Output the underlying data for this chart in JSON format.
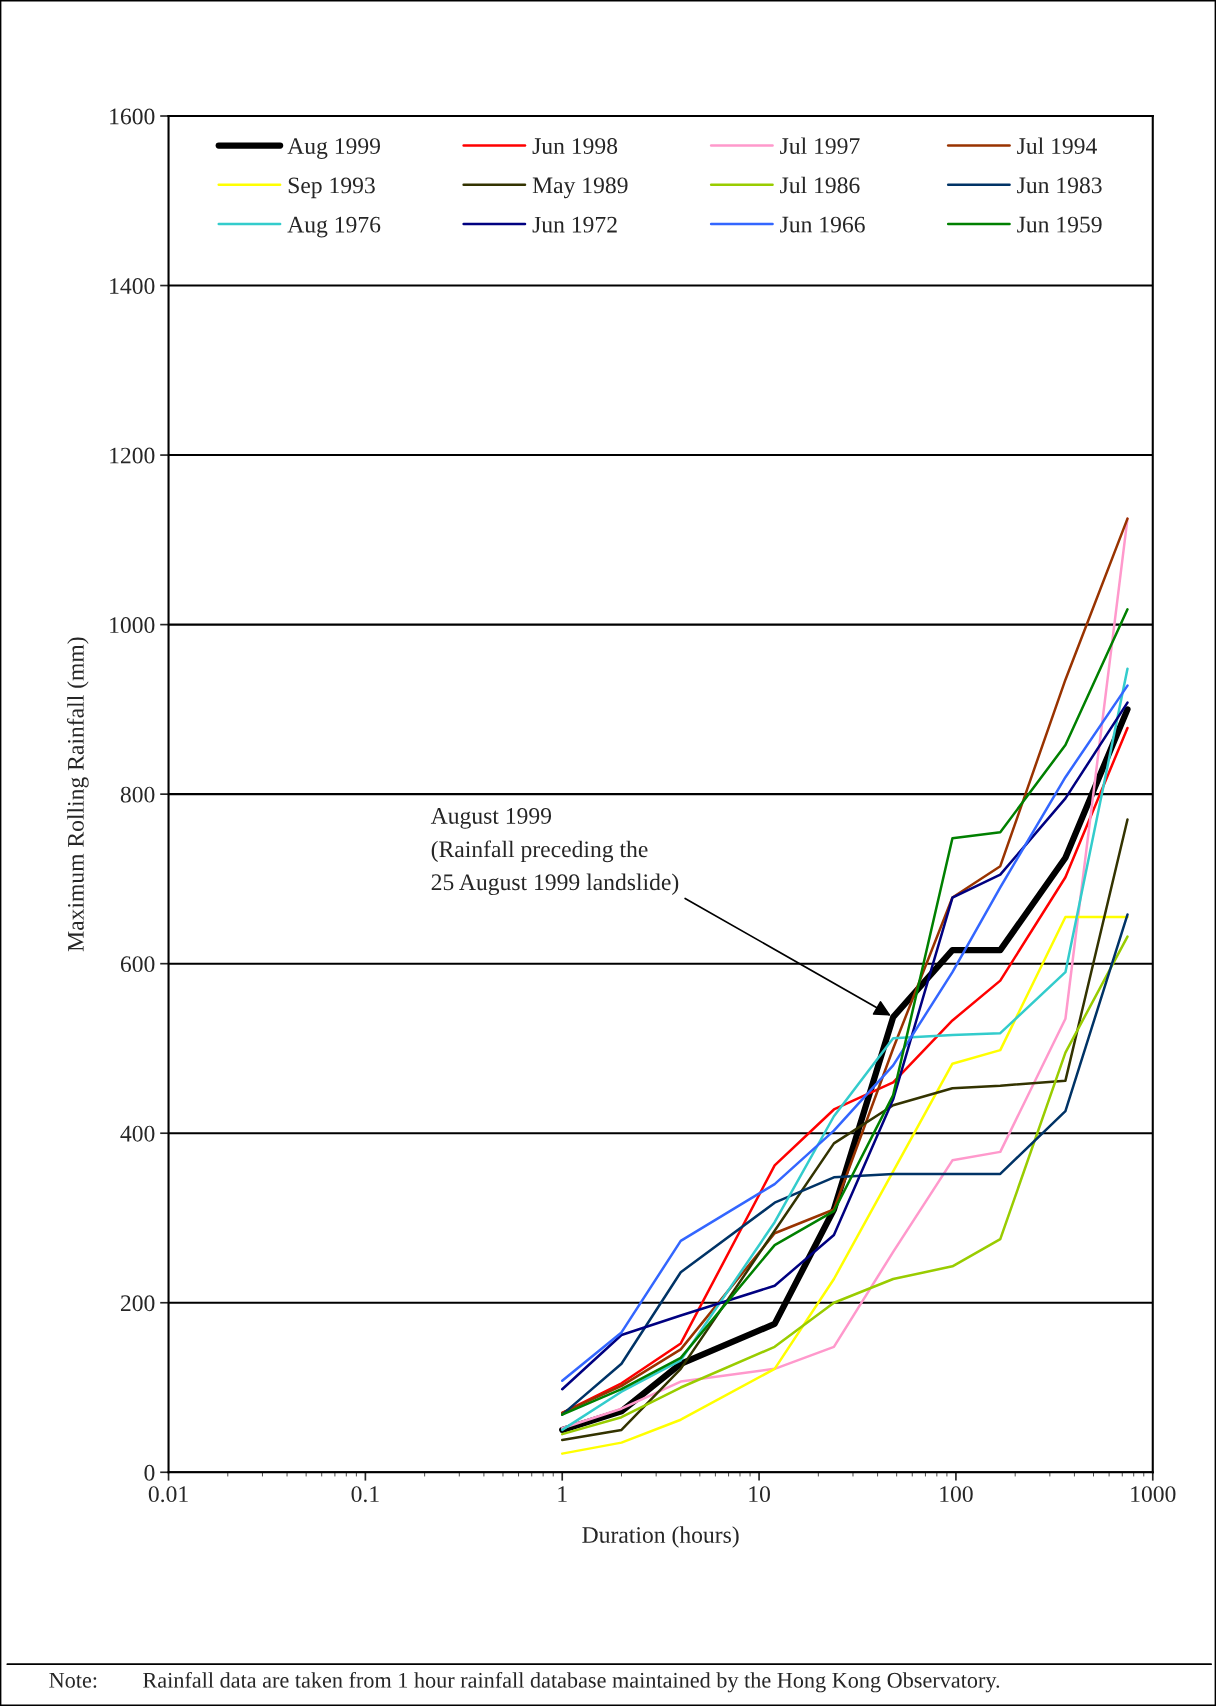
{
  "chart_data": {
    "type": "line",
    "xlabel": "Duration (hours)",
    "ylabel": "Maximum Rolling Rainfall (mm)",
    "x": [
      1,
      2,
      4,
      12,
      24,
      48,
      96,
      168,
      360,
      744
    ],
    "series": [
      {
        "name": "Aug 1999",
        "color": "#000000",
        "values": [
          50,
          72,
          128,
          175,
          310,
          537,
          616,
          616,
          725,
          900
        ]
      },
      {
        "name": "Jun 1998",
        "color": "#ff0000",
        "values": [
          70,
          105,
          152,
          362,
          428,
          460,
          533,
          580,
          702,
          878
        ]
      },
      {
        "name": "Jul 1997",
        "color": "#ff99cc",
        "values": [
          52,
          75,
          107,
          122,
          148,
          260,
          368,
          378,
          535,
          1125
        ]
      },
      {
        "name": "Jul 1994",
        "color": "#993300",
        "values": [
          70,
          102,
          145,
          282,
          310,
          500,
          678,
          715,
          935,
          1125
        ]
      },
      {
        "name": "Sep 1993",
        "color": "#ffff00",
        "values": [
          22,
          35,
          62,
          122,
          228,
          355,
          482,
          498,
          655,
          655
        ]
      },
      {
        "name": "May 1989",
        "color": "#333300",
        "values": [
          38,
          50,
          122,
          285,
          388,
          433,
          453,
          456,
          462,
          770
        ]
      },
      {
        "name": "Jul 1986",
        "color": "#99cc00",
        "values": [
          45,
          65,
          100,
          148,
          200,
          228,
          243,
          275,
          495,
          632
        ]
      },
      {
        "name": "Jun 1983",
        "color": "#003366",
        "values": [
          68,
          128,
          236,
          318,
          348,
          352,
          352,
          352,
          426,
          658
        ]
      },
      {
        "name": "Aug 1976",
        "color": "#33cccc",
        "values": [
          50,
          95,
          132,
          295,
          420,
          512,
          516,
          518,
          590,
          948
        ]
      },
      {
        "name": "Jun 1972",
        "color": "#000080",
        "values": [
          98,
          162,
          185,
          220,
          280,
          440,
          678,
          705,
          795,
          908
        ]
      },
      {
        "name": "Jun 1966",
        "color": "#3366ff",
        "values": [
          108,
          165,
          273,
          340,
          403,
          480,
          590,
          690,
          820,
          928
        ]
      },
      {
        "name": "Jun 1959",
        "color": "#008000",
        "values": [
          68,
          98,
          135,
          268,
          308,
          445,
          748,
          755,
          858,
          1018
        ]
      }
    ],
    "log": "x",
    "xlim": [
      0.01,
      1000
    ],
    "xticks": [
      0.01,
      0.1,
      1,
      10,
      100,
      1000
    ],
    "ylim": [
      0,
      1600
    ],
    "yticks": [
      0,
      200,
      400,
      600,
      800,
      1000,
      1200,
      1400,
      1600
    ],
    "grid": "y",
    "legend": "top",
    "marker": "none",
    "line_style": "solid",
    "annotations": [
      {
        "text": "August 1999\n(Rainfall preceding the\n25 August 1999 landslide)",
        "x": 48,
        "y": 537
      },
      "Note:        Rainfall data are taken from 1 hour rainfall database maintained by the Hong Kong Observatory."
    ]
  }
}
